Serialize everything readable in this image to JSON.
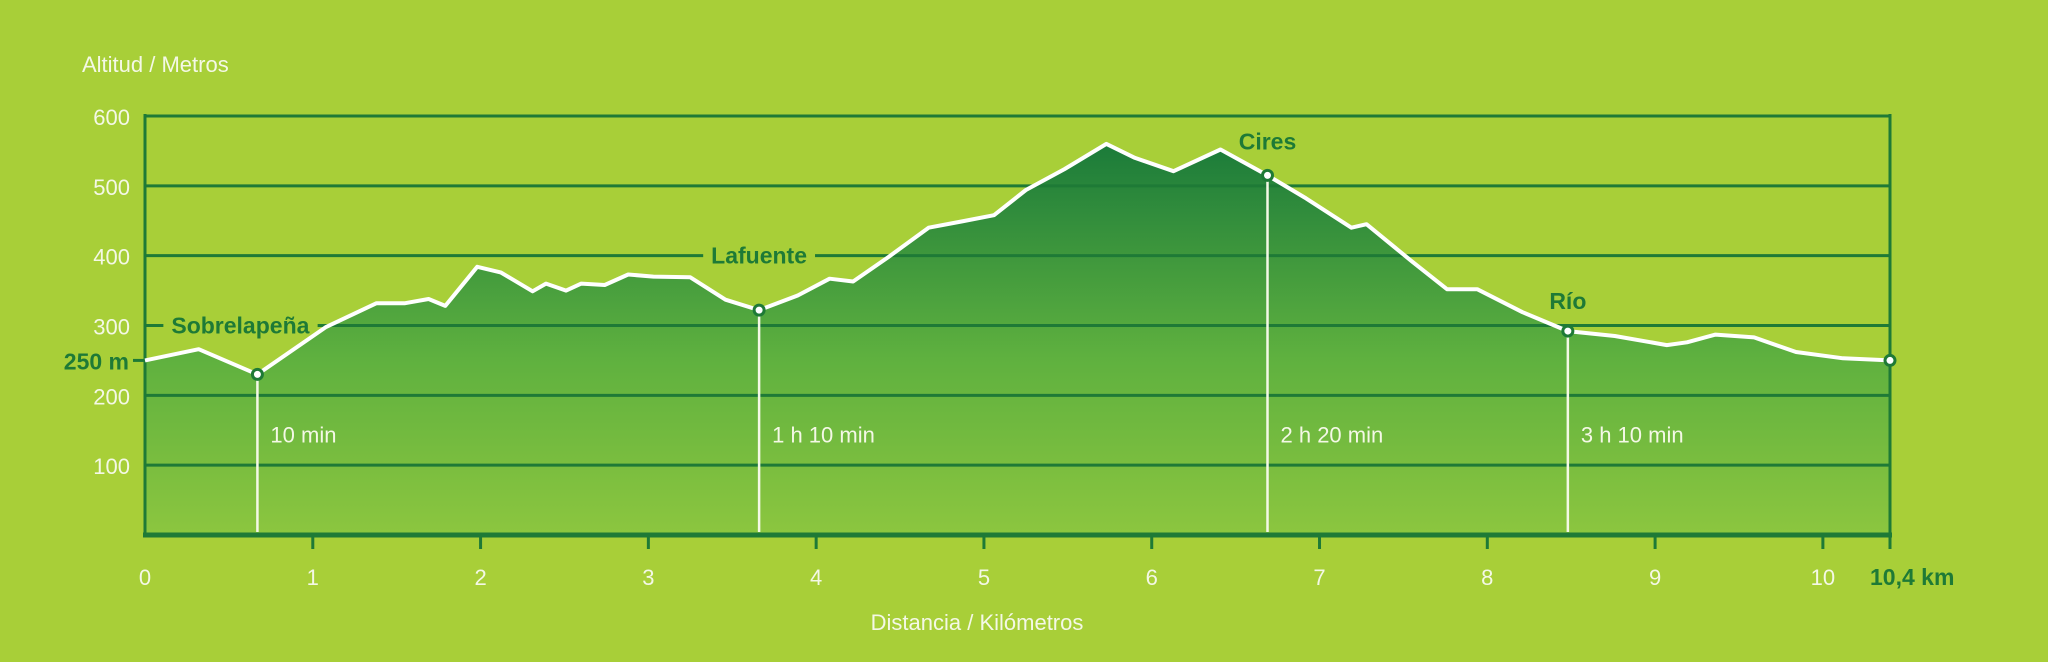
{
  "colors": {
    "background": "#a8cf38",
    "axis": "#1e7a36",
    "fill_top": "#1b7b3a",
    "fill_bottom": "#8cc63f",
    "line": "#ffffff"
  },
  "chart_data": {
    "type": "area",
    "title": "",
    "xlabel": "Distancia / Kilómetros",
    "ylabel": "Altitud / Metros",
    "xlim": [
      0,
      10.4
    ],
    "ylim": [
      0,
      600
    ],
    "grid": true,
    "x_ticks": [
      0,
      1,
      2,
      3,
      4,
      5,
      6,
      7,
      8,
      9,
      10
    ],
    "x_tick_labels": [
      "0",
      "1",
      "2",
      "3",
      "4",
      "5",
      "6",
      "7",
      "8",
      "9",
      "10"
    ],
    "x_end_label": "10,4 km",
    "y_ticks": [
      100,
      200,
      300,
      400,
      500,
      600
    ],
    "y_tick_labels": [
      "100",
      "200",
      "300",
      "400",
      "500",
      "600"
    ],
    "start_elevation_label": "250 m",
    "start_elevation": 250,
    "profile": [
      [
        0,
        250
      ],
      [
        0.32,
        266
      ],
      [
        0.67,
        230
      ],
      [
        1.08,
        298
      ],
      [
        1.38,
        332
      ],
      [
        1.55,
        332
      ],
      [
        1.69,
        338
      ],
      [
        1.79,
        328
      ],
      [
        1.98,
        384
      ],
      [
        2.12,
        376
      ],
      [
        2.31,
        349
      ],
      [
        2.39,
        360
      ],
      [
        2.51,
        350
      ],
      [
        2.6,
        360
      ],
      [
        2.74,
        358
      ],
      [
        2.88,
        373
      ],
      [
        3.03,
        370
      ],
      [
        3.25,
        369
      ],
      [
        3.46,
        337
      ],
      [
        3.66,
        322
      ],
      [
        3.89,
        343
      ],
      [
        4.08,
        367
      ],
      [
        4.22,
        363
      ],
      [
        4.43,
        398
      ],
      [
        4.67,
        440
      ],
      [
        4.87,
        449
      ],
      [
        5.06,
        458
      ],
      [
        5.25,
        494
      ],
      [
        5.48,
        524
      ],
      [
        5.73,
        560
      ],
      [
        5.9,
        540
      ],
      [
        6.13,
        521
      ],
      [
        6.41,
        552
      ],
      [
        6.69,
        515
      ],
      [
        6.92,
        482
      ],
      [
        7.19,
        440
      ],
      [
        7.28,
        445
      ],
      [
        7.55,
        392
      ],
      [
        7.76,
        352
      ],
      [
        7.94,
        352
      ],
      [
        8.21,
        319
      ],
      [
        8.48,
        292
      ],
      [
        8.76,
        285
      ],
      [
        9.07,
        272
      ],
      [
        9.19,
        276
      ],
      [
        9.36,
        287
      ],
      [
        9.59,
        283
      ],
      [
        9.84,
        262
      ],
      [
        10.12,
        253
      ],
      [
        10.4,
        250
      ]
    ],
    "waypoints": [
      {
        "name": "Sobrelapeña",
        "km": 0.67,
        "elevation": 230,
        "time": "10 min"
      },
      {
        "name": "Lafuente",
        "km": 3.66,
        "elevation": 322,
        "time": "1 h 10 min"
      },
      {
        "name": "Cires",
        "km": 6.69,
        "elevation": 515,
        "time": "2 h 20 min"
      },
      {
        "name": "Río",
        "km": 8.48,
        "elevation": 292,
        "time": "3 h 10 min"
      }
    ],
    "end_point": {
      "km": 10.4,
      "elevation": 250
    }
  }
}
